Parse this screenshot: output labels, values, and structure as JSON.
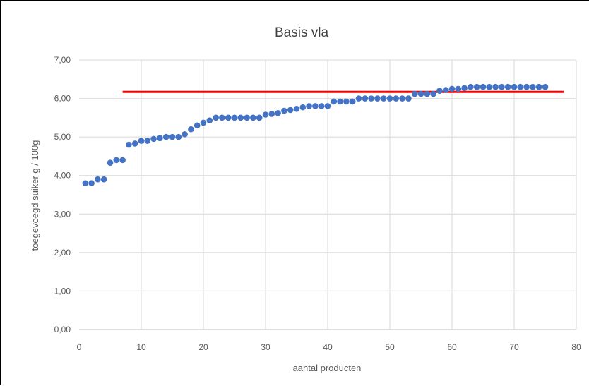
{
  "chart_data": {
    "type": "scatter",
    "title": "Basis vla",
    "xlabel": "aantal producten",
    "ylabel": "toegevoegd suiker g / 100g",
    "xlim": [
      0,
      80
    ],
    "ylim": [
      0,
      7
    ],
    "xticks": [
      0,
      10,
      20,
      30,
      40,
      50,
      60,
      70,
      80
    ],
    "xtick_labels": [
      "0",
      "10",
      "20",
      "30",
      "40",
      "50",
      "60",
      "70",
      "80"
    ],
    "yticks": [
      0,
      1,
      2,
      3,
      4,
      5,
      6,
      7
    ],
    "ytick_labels": [
      "0,00",
      "1,00",
      "2,00",
      "3,00",
      "4,00",
      "5,00",
      "6,00",
      "7,00"
    ],
    "grid": true,
    "legend": "none",
    "marker_color": "#4472C4",
    "reference_line": {
      "x": [
        7,
        78
      ],
      "y": 6.17,
      "color": "#FF0000"
    },
    "series": [
      {
        "x": [
          1,
          2,
          3,
          4,
          5,
          6,
          7,
          8,
          9,
          10,
          11,
          12,
          13,
          14,
          15,
          16,
          17,
          18,
          19,
          20,
          21,
          22,
          23,
          24,
          25,
          26,
          27,
          28,
          29,
          30,
          31,
          32,
          33,
          34,
          35,
          36,
          37,
          38,
          39,
          40,
          41,
          42,
          43,
          44,
          45,
          46,
          47,
          48,
          49,
          50,
          51,
          52,
          53,
          54,
          55,
          56,
          57,
          58,
          59,
          60,
          61,
          62,
          63,
          64,
          65,
          66,
          67,
          68,
          69,
          70,
          71,
          72,
          73,
          74,
          75
        ],
        "y": [
          3.8,
          3.8,
          3.9,
          3.9,
          4.33,
          4.4,
          4.4,
          4.8,
          4.83,
          4.9,
          4.9,
          4.95,
          4.97,
          5.0,
          5.0,
          5.0,
          5.07,
          5.2,
          5.3,
          5.37,
          5.43,
          5.5,
          5.5,
          5.5,
          5.5,
          5.5,
          5.5,
          5.5,
          5.5,
          5.58,
          5.6,
          5.62,
          5.68,
          5.7,
          5.73,
          5.77,
          5.8,
          5.8,
          5.8,
          5.8,
          5.92,
          5.92,
          5.92,
          5.92,
          6.0,
          6.0,
          6.0,
          6.0,
          6.0,
          6.0,
          6.0,
          6.0,
          6.0,
          6.12,
          6.12,
          6.12,
          6.12,
          6.2,
          6.22,
          6.25,
          6.25,
          6.27,
          6.3,
          6.3,
          6.3,
          6.3,
          6.3,
          6.3,
          6.3,
          6.3,
          6.3,
          6.3,
          6.3,
          6.3,
          6.3
        ]
      }
    ]
  }
}
